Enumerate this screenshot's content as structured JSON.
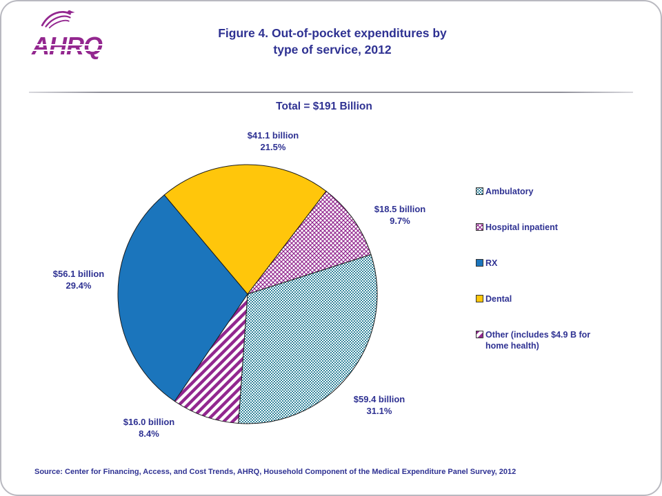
{
  "header": {
    "title_line1": "Figure 4. Out-of-pocket expenditures by",
    "title_line2": "type of service, 2012",
    "total_label": "Total = $191 Billion"
  },
  "logo": {
    "text": "AHRQ",
    "icon": "hhs-eagle-icon"
  },
  "footer": {
    "source": "Source: Center for Financing, Access, and Cost Trends, AHRQ, Household Component of the Medical Expenditure Panel Survey, 2012"
  },
  "colors": {
    "heading_navy": "#2E3192",
    "logo_purple": "#93278F",
    "rx_blue": "#1B75BC",
    "dental_yellow": "#FFC60B",
    "teal": "#31859C",
    "purple_pattern": "#92278F",
    "slice_outline": "#1a1a1a"
  },
  "chart_data": {
    "type": "pie",
    "title": "Figure 4. Out-of-pocket expenditures by type of service, 2012",
    "total_label": "Total = $191 Billion",
    "units": "billions of dollars",
    "total_value": 191,
    "slices": [
      {
        "name": "Ambulatory",
        "value": 59.4,
        "pct": 31.1,
        "label_line1": "$59.4 billion",
        "label_line2": "31.1%",
        "pattern": "dots-teal"
      },
      {
        "name": "Hospital inpatient",
        "value": 18.5,
        "pct": 9.7,
        "label_line1": "$18.5 billion",
        "label_line2": "9.7%",
        "pattern": "weave-purple"
      },
      {
        "name": "RX",
        "value": 56.1,
        "pct": 29.4,
        "label_line1": "$56.1 billion",
        "label_line2": "29.4%",
        "pattern": "solid-blue"
      },
      {
        "name": "Dental",
        "value": 41.1,
        "pct": 21.5,
        "label_line1": "$41.1 billion",
        "label_line2": "21.5%",
        "pattern": "solid-yellow"
      },
      {
        "name": "Other",
        "value": 16.0,
        "pct": 8.4,
        "label_line1": "$16.0 billion",
        "label_line2": "8.4%",
        "pattern": "stripe-purple"
      }
    ],
    "legend": [
      {
        "label": "Ambulatory",
        "pattern": "dots-teal"
      },
      {
        "label": "Hospital inpatient",
        "pattern": "weave-purple"
      },
      {
        "label": "RX",
        "pattern": "solid-blue"
      },
      {
        "label": "Dental",
        "pattern": "solid-yellow"
      },
      {
        "label": "Other (includes $4.9 B for\nhome health)",
        "pattern": "stripe-purple"
      }
    ],
    "layout": {
      "legend_position": "right",
      "start_angle_deg": -40,
      "clockwise_order": [
        "Dental",
        "Hospital inpatient",
        "Ambulatory",
        "Other",
        "RX"
      ]
    }
  }
}
